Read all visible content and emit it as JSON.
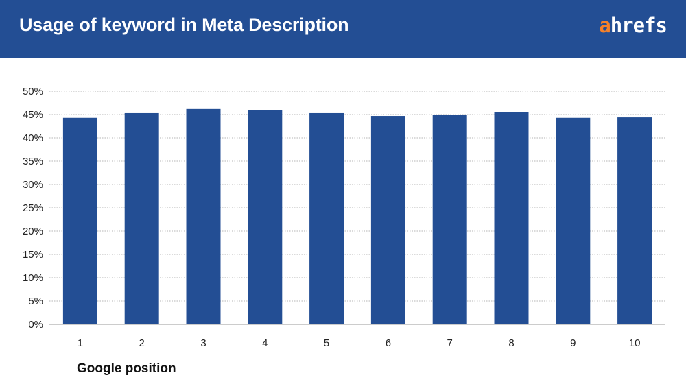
{
  "header": {
    "title": "Usage of keyword in Meta Description",
    "logo_accent": "a",
    "logo_rest": "hrefs"
  },
  "colors": {
    "header_bg": "#234e94",
    "bar": "#234e94",
    "logo_accent": "#f5812a"
  },
  "chart_data": {
    "type": "bar",
    "title": "Usage of keyword in Meta Description",
    "xlabel": "Google position",
    "ylabel": "",
    "categories": [
      "1",
      "2",
      "3",
      "4",
      "5",
      "6",
      "7",
      "8",
      "9",
      "10"
    ],
    "values": [
      44.3,
      45.3,
      46.2,
      45.9,
      45.3,
      44.7,
      44.9,
      45.5,
      44.3,
      44.4
    ],
    "ylim": [
      0,
      50
    ],
    "yticks": [
      "0%",
      "5%",
      "10%",
      "15%",
      "20%",
      "25%",
      "30%",
      "35%",
      "40%",
      "45%",
      "50%"
    ],
    "grid": true,
    "legend": "none"
  }
}
